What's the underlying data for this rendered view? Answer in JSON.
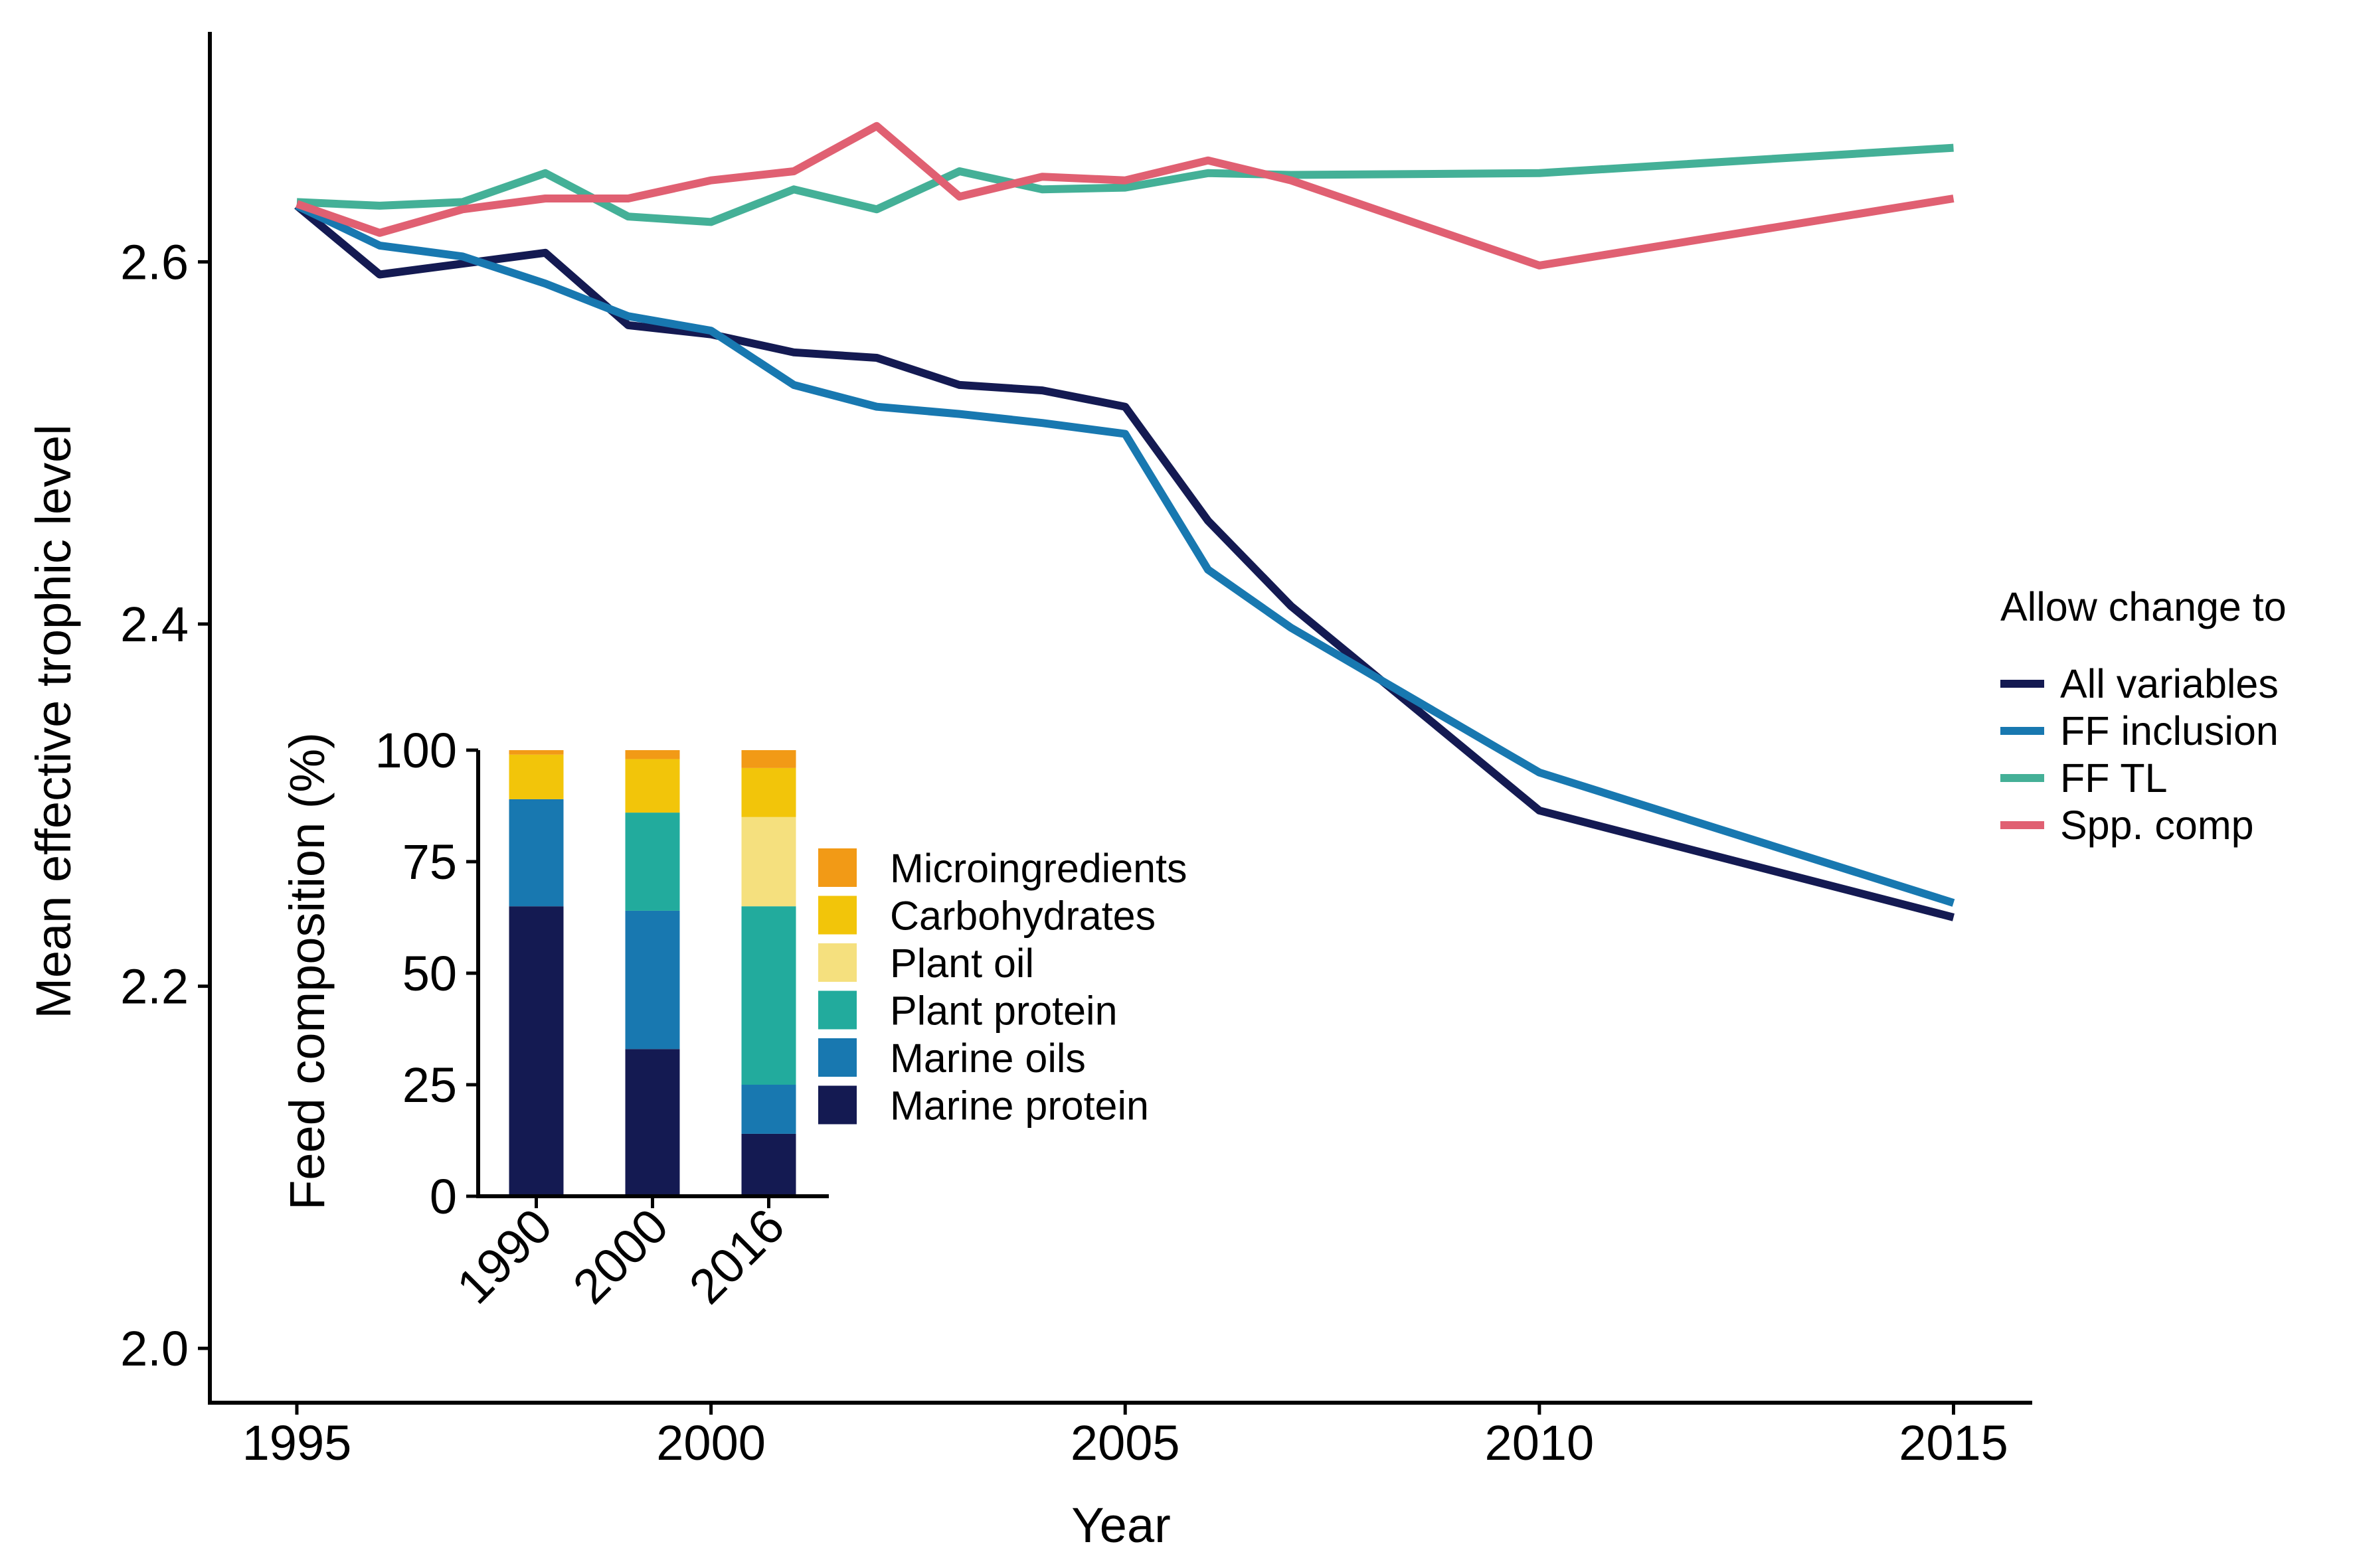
{
  "chart_data": [
    {
      "type": "line",
      "xlabel": "Year",
      "ylabel": "Mean effective trophic level",
      "xlim": [
        1993.95,
        2015.95
      ],
      "ylim": [
        1.97,
        2.727
      ],
      "xticks": [
        1995,
        2000,
        2005,
        2010,
        2015
      ],
      "yticks": [
        2.0,
        2.2,
        2.4,
        2.6
      ],
      "ytick_labels": [
        "2.0",
        "2.2",
        "2.4",
        "2.6"
      ],
      "grid": false,
      "legend": {
        "title": "Allow change to",
        "placement": "right"
      },
      "series": [
        {
          "name": "All variables",
          "color": "#141a52",
          "x": [
            1995,
            1996,
            1997,
            1998,
            1999,
            2000,
            2001,
            2002,
            2003,
            2004,
            2005,
            2006,
            2007,
            2010,
            2015
          ],
          "y": [
            2.631,
            2.593,
            2.599,
            2.605,
            2.565,
            2.56,
            2.55,
            2.547,
            2.532,
            2.529,
            2.52,
            2.457,
            2.41,
            2.297,
            2.238
          ]
        },
        {
          "name": "FF inclusion",
          "color": "#1878b0",
          "x": [
            1995,
            1996,
            1997,
            1998,
            1999,
            2000,
            2001,
            2002,
            2003,
            2004,
            2005,
            2006,
            2007,
            2010,
            2015
          ],
          "y": [
            2.631,
            2.609,
            2.603,
            2.588,
            2.57,
            2.562,
            2.532,
            2.52,
            2.516,
            2.511,
            2.505,
            2.43,
            2.398,
            2.318,
            2.246
          ]
        },
        {
          "name": "FF TL",
          "color": "#44b097",
          "x": [
            1995,
            1996,
            1997,
            1998,
            1999,
            2000,
            2001,
            2002,
            2003,
            2004,
            2005,
            2006,
            2007,
            2010,
            2015
          ],
          "y": [
            2.633,
            2.631,
            2.633,
            2.649,
            2.625,
            2.622,
            2.64,
            2.629,
            2.65,
            2.64,
            2.641,
            2.649,
            2.648,
            2.649,
            2.663
          ]
        },
        {
          "name": "Spp. comp",
          "color": "#e06072",
          "x": [
            1995,
            1996,
            1997,
            1998,
            1999,
            2000,
            2001,
            2002,
            2003,
            2004,
            2005,
            2006,
            2007,
            2010,
            2015
          ],
          "y": [
            2.632,
            2.616,
            2.629,
            2.635,
            2.635,
            2.645,
            2.65,
            2.675,
            2.636,
            2.647,
            2.645,
            2.656,
            2.645,
            2.598,
            2.635
          ]
        }
      ]
    },
    {
      "type": "bar",
      "stacked": true,
      "categories": [
        "1990",
        "2000",
        "2016"
      ],
      "ylabel": "Feed composition (%)",
      "xlabel": "",
      "ylim": [
        0,
        100
      ],
      "yticks": [
        0,
        25,
        50,
        75,
        100
      ],
      "grid": false,
      "legend": {
        "placement": "right"
      },
      "series": [
        {
          "name": "Marine protein",
          "color": "#141a52",
          "values": [
            65,
            33,
            14
          ]
        },
        {
          "name": "Marine oils",
          "color": "#1878b0",
          "values": [
            24,
            31,
            11
          ]
        },
        {
          "name": "Plant protein",
          "color": "#22ab9d",
          "values": [
            0,
            22,
            40
          ]
        },
        {
          "name": "Plant oil",
          "color": "#f5e07e",
          "values": [
            0,
            0,
            20
          ]
        },
        {
          "name": "Carbohydrates",
          "color": "#f2c50a",
          "values": [
            10,
            12,
            11
          ]
        },
        {
          "name": "Microingredients",
          "color": "#f29a16",
          "values": [
            1,
            2,
            4
          ]
        }
      ]
    }
  ]
}
